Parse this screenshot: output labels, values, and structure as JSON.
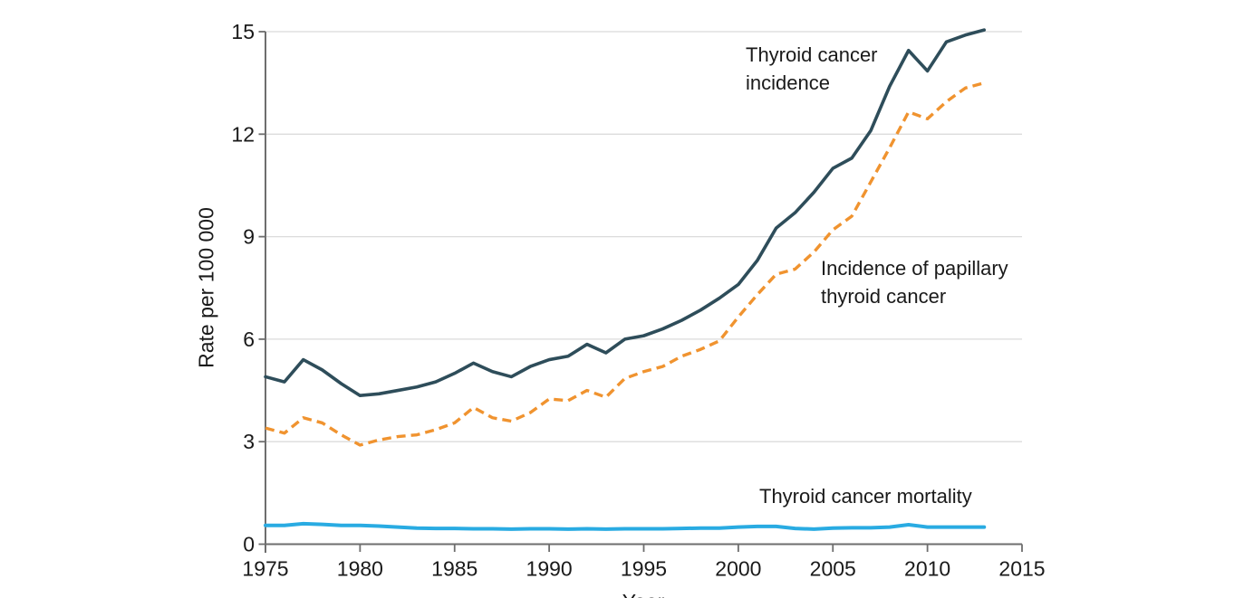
{
  "page": {
    "background": "#FFFFFF"
  },
  "labels": {
    "incidence_line1": "Thyroid cancer",
    "incidence_line2": "incidence",
    "papillary_line1": "Incidence of papillary",
    "papillary_line2": "thyroid cancer",
    "mortality": "Thyroid cancer mortality",
    "y_axis_title": "Rate per 100 000",
    "x_axis_title": "Year"
  },
  "chart_data": {
    "type": "line",
    "title": "",
    "xlabel": "Year",
    "ylabel": "Rate per 100 000",
    "xlim": [
      1975,
      2015
    ],
    "ylim": [
      0,
      15
    ],
    "xticks": [
      1975,
      1980,
      1985,
      1990,
      1995,
      2000,
      2005,
      2010,
      2015
    ],
    "yticks": [
      0,
      3,
      6,
      9,
      12,
      15
    ],
    "grid": "horizontal-light",
    "legend": "inline-annotations",
    "axis_color": "#6E6E6E",
    "grid_color": "#DBDBDB",
    "text_color": "#1A1A1A",
    "x": [
      1975,
      1976,
      1977,
      1978,
      1979,
      1980,
      1981,
      1982,
      1983,
      1984,
      1985,
      1986,
      1987,
      1988,
      1989,
      1990,
      1991,
      1992,
      1993,
      1994,
      1995,
      1996,
      1997,
      1998,
      1999,
      2000,
      2001,
      2002,
      2003,
      2004,
      2005,
      2006,
      2007,
      2008,
      2009,
      2010,
      2011,
      2012,
      2013
    ],
    "series": [
      {
        "name": "Thyroid cancer incidence",
        "slug": "thyroid-cancer-incidence",
        "color": "#2E4D5A",
        "line_style": "solid",
        "stroke_width": 3.6,
        "values": [
          4.9,
          4.75,
          5.4,
          5.1,
          4.7,
          4.35,
          4.4,
          4.5,
          4.6,
          4.75,
          5.0,
          5.3,
          5.05,
          4.9,
          5.2,
          5.4,
          5.5,
          5.85,
          5.6,
          6.0,
          6.1,
          6.3,
          6.55,
          6.85,
          7.2,
          7.6,
          8.3,
          9.25,
          9.7,
          10.3,
          11.0,
          11.3,
          12.1,
          13.4,
          14.45,
          13.85,
          14.7,
          14.9,
          15.05
        ]
      },
      {
        "name": "Incidence of papillary thyroid cancer",
        "slug": "papillary-thyroid-cancer-incidence",
        "color": "#F0932F",
        "line_style": "dashed",
        "stroke_width": 3.4,
        "values": [
          3.4,
          3.25,
          3.7,
          3.55,
          3.2,
          2.9,
          3.05,
          3.15,
          3.2,
          3.35,
          3.55,
          4.0,
          3.7,
          3.6,
          3.85,
          4.25,
          4.2,
          4.5,
          4.3,
          4.85,
          5.05,
          5.2,
          5.5,
          5.7,
          5.95,
          6.65,
          7.3,
          7.9,
          8.05,
          8.55,
          9.2,
          9.6,
          10.6,
          11.6,
          12.65,
          12.45,
          12.95,
          13.35,
          13.5
        ]
      },
      {
        "name": "Thyroid cancer mortality",
        "slug": "thyroid-cancer-mortality",
        "color": "#29ABE2",
        "line_style": "solid",
        "stroke_width": 4,
        "values": [
          0.55,
          0.55,
          0.6,
          0.58,
          0.55,
          0.55,
          0.53,
          0.5,
          0.47,
          0.46,
          0.46,
          0.45,
          0.45,
          0.44,
          0.45,
          0.45,
          0.44,
          0.45,
          0.44,
          0.45,
          0.45,
          0.45,
          0.46,
          0.47,
          0.47,
          0.5,
          0.52,
          0.52,
          0.46,
          0.44,
          0.47,
          0.48,
          0.48,
          0.5,
          0.57,
          0.5,
          0.5,
          0.5,
          0.5
        ]
      }
    ],
    "annotations": [
      {
        "series": "Thyroid cancer incidence",
        "text_lines": [
          "Thyroid cancer",
          "incidence"
        ]
      },
      {
        "series": "Incidence of papillary thyroid cancer",
        "text_lines": [
          "Incidence of papillary",
          "thyroid cancer"
        ]
      },
      {
        "series": "Thyroid cancer mortality",
        "text_lines": [
          "Thyroid cancer mortality"
        ]
      }
    ]
  }
}
